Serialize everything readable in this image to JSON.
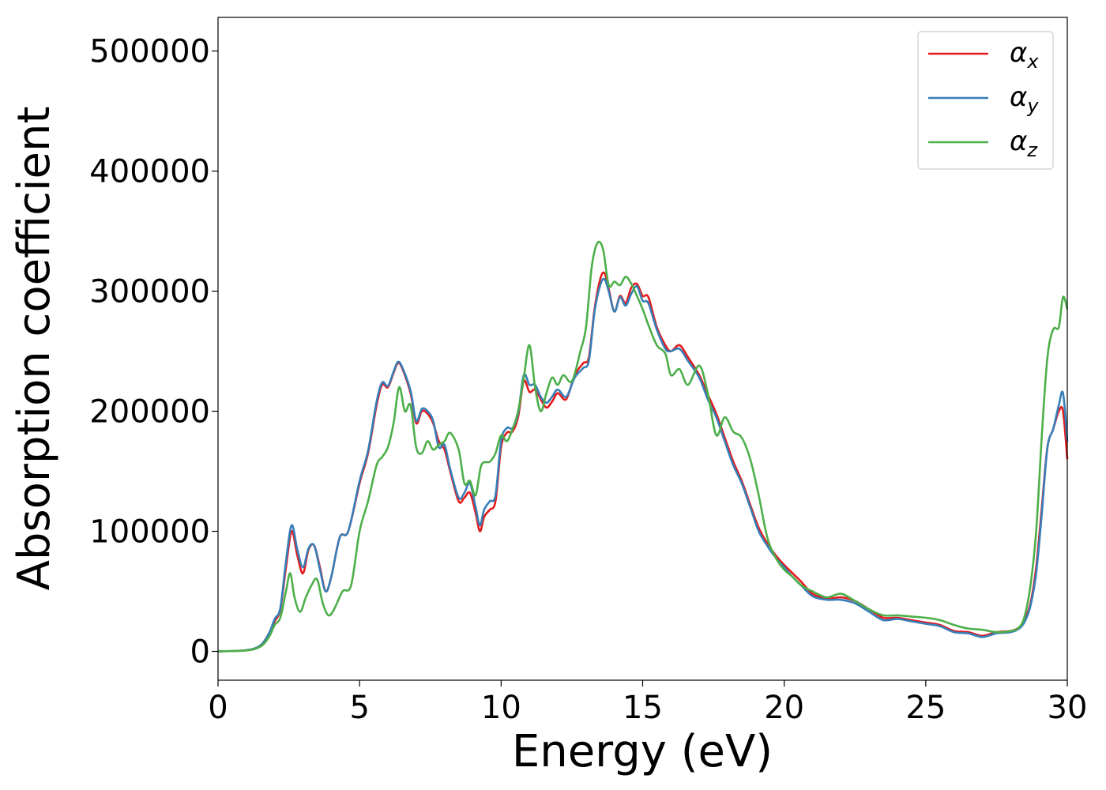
{
  "chart_data": {
    "type": "line",
    "title": "",
    "xlabel": "Energy (eV)",
    "ylabel": "Absorption coefficient",
    "xlim": [
      0,
      30
    ],
    "ylim": [
      -24000,
      528000
    ],
    "xticks": [
      0,
      5,
      10,
      15,
      20,
      25,
      30
    ],
    "yticks": [
      0,
      100000,
      200000,
      300000,
      400000,
      500000
    ],
    "xtick_labels": [
      "0",
      "5",
      "10",
      "15",
      "20",
      "25",
      "30"
    ],
    "ytick_labels": [
      "0",
      "100000",
      "200000",
      "300000",
      "400000",
      "500000"
    ],
    "grid": false,
    "legend_position": "top-right",
    "series": [
      {
        "name": "α",
        "subscript": "x",
        "color": "#e41a1c",
        "x": [
          0,
          1,
          1.5,
          1.8,
          2.0,
          2.2,
          2.4,
          2.6,
          2.8,
          3.0,
          3.2,
          3.4,
          3.6,
          3.8,
          4.0,
          4.3,
          4.6,
          5.0,
          5.3,
          5.6,
          5.8,
          6.0,
          6.2,
          6.35,
          6.5,
          6.8,
          7.0,
          7.2,
          7.4,
          7.6,
          7.8,
          8.0,
          8.2,
          8.5,
          8.7,
          8.9,
          9.1,
          9.25,
          9.4,
          9.6,
          9.8,
          10.0,
          10.2,
          10.4,
          10.6,
          10.8,
          11.0,
          11.2,
          11.4,
          11.6,
          11.8,
          12.0,
          12.3,
          12.6,
          12.9,
          13.1,
          13.3,
          13.5,
          13.65,
          13.8,
          14.0,
          14.2,
          14.4,
          14.6,
          14.8,
          15.0,
          15.2,
          15.5,
          15.8,
          16.0,
          16.3,
          16.6,
          17.0,
          17.3,
          17.6,
          17.9,
          18.2,
          18.5,
          18.8,
          19.1,
          19.4,
          19.7,
          20.0,
          20.3,
          20.6,
          21.0,
          21.5,
          22.0,
          22.5,
          23.0,
          23.5,
          24.0,
          24.5,
          25.0,
          25.5,
          26.0,
          26.5,
          27.0,
          27.5,
          28.0,
          28.3,
          28.5,
          28.7,
          28.9,
          29.1,
          29.3,
          29.5,
          29.7,
          29.85,
          30.0
        ],
        "y": [
          0,
          1000,
          5000,
          15000,
          25000,
          35000,
          70000,
          100000,
          80000,
          65000,
          85000,
          88000,
          70000,
          50000,
          62000,
          95000,
          100000,
          140000,
          165000,
          205000,
          222000,
          220000,
          232000,
          240000,
          236000,
          215000,
          190000,
          200000,
          198000,
          190000,
          175000,
          168000,
          150000,
          125000,
          128000,
          132000,
          115000,
          100000,
          112000,
          118000,
          125000,
          170000,
          182000,
          183000,
          195000,
          225000,
          216000,
          218000,
          210000,
          203000,
          208000,
          215000,
          210000,
          230000,
          240000,
          245000,
          285000,
          310000,
          315000,
          302000,
          283000,
          296000,
          290000,
          303000,
          306000,
          296000,
          295000,
          270000,
          255000,
          250000,
          255000,
          245000,
          230000,
          214000,
          198000,
          178000,
          158000,
          142000,
          122000,
          103000,
          90000,
          80000,
          72000,
          65000,
          58000,
          48000,
          44000,
          45000,
          42000,
          35000,
          28000,
          28000,
          26000,
          24000,
          22000,
          17000,
          16000,
          13000,
          16000,
          17000,
          20000,
          27000,
          40000,
          70000,
          120000,
          170000,
          185000,
          200000,
          200000,
          160000
        ]
      },
      {
        "name": "α",
        "subscript": "y",
        "color": "#377eb8",
        "x": [
          0,
          1,
          1.5,
          1.8,
          2.0,
          2.2,
          2.4,
          2.6,
          2.8,
          3.0,
          3.2,
          3.4,
          3.6,
          3.8,
          4.0,
          4.3,
          4.6,
          5.0,
          5.3,
          5.6,
          5.8,
          6.0,
          6.2,
          6.35,
          6.5,
          6.8,
          7.0,
          7.2,
          7.4,
          7.6,
          7.8,
          8.0,
          8.2,
          8.5,
          8.7,
          8.9,
          9.1,
          9.25,
          9.4,
          9.6,
          9.8,
          10.0,
          10.2,
          10.4,
          10.6,
          10.8,
          11.0,
          11.2,
          11.4,
          11.6,
          11.8,
          12.0,
          12.3,
          12.6,
          12.9,
          13.1,
          13.3,
          13.5,
          13.65,
          13.8,
          14.0,
          14.2,
          14.4,
          14.6,
          14.8,
          15.0,
          15.2,
          15.5,
          15.8,
          16.0,
          16.3,
          16.6,
          17.0,
          17.3,
          17.6,
          17.9,
          18.2,
          18.5,
          18.8,
          19.1,
          19.4,
          19.7,
          20.0,
          20.3,
          20.6,
          21.0,
          21.5,
          22.0,
          22.5,
          23.0,
          23.5,
          24.0,
          24.5,
          25.0,
          25.5,
          26.0,
          26.5,
          27.0,
          27.5,
          28.0,
          28.3,
          28.5,
          28.7,
          28.9,
          29.1,
          29.3,
          29.5,
          29.7,
          29.85,
          30.0
        ],
        "y": [
          0,
          1000,
          5000,
          15000,
          27000,
          36000,
          75000,
          105000,
          85000,
          70000,
          86000,
          88000,
          68000,
          50000,
          62000,
          95000,
          100000,
          142000,
          167000,
          208000,
          224000,
          221000,
          233000,
          241000,
          237000,
          217000,
          192000,
          202000,
          200000,
          192000,
          170000,
          172000,
          152000,
          128000,
          132000,
          140000,
          120000,
          105000,
          118000,
          125000,
          130000,
          175000,
          186000,
          186000,
          198000,
          230000,
          222000,
          222000,
          212000,
          207000,
          212000,
          218000,
          212000,
          228000,
          236000,
          242000,
          283000,
          305000,
          310000,
          300000,
          283000,
          295000,
          288000,
          298000,
          304000,
          292000,
          290000,
          268000,
          252000,
          250000,
          252000,
          242000,
          228000,
          210000,
          195000,
          175000,
          155000,
          140000,
          120000,
          100000,
          88000,
          78000,
          70000,
          62000,
          55000,
          46000,
          43000,
          43000,
          40000,
          33000,
          26000,
          27000,
          25000,
          23000,
          21000,
          16000,
          15000,
          12000,
          15000,
          16000,
          19000,
          25000,
          38000,
          65000,
          115000,
          170000,
          185000,
          205000,
          215000,
          175000
        ]
      },
      {
        "name": "α",
        "subscript": "z",
        "color": "#4daf4a",
        "x": [
          0,
          1,
          1.5,
          1.8,
          2.0,
          2.2,
          2.4,
          2.55,
          2.7,
          2.9,
          3.1,
          3.3,
          3.5,
          3.7,
          3.9,
          4.1,
          4.4,
          4.7,
          5.0,
          5.3,
          5.6,
          5.8,
          6.0,
          6.2,
          6.4,
          6.6,
          6.8,
          7.0,
          7.2,
          7.4,
          7.6,
          7.8,
          8.0,
          8.2,
          8.5,
          8.7,
          8.9,
          9.1,
          9.3,
          9.6,
          9.8,
          10.0,
          10.2,
          10.4,
          10.6,
          10.8,
          11.0,
          11.2,
          11.4,
          11.6,
          11.8,
          12.0,
          12.2,
          12.5,
          12.8,
          13.0,
          13.2,
          13.4,
          13.6,
          13.8,
          14.0,
          14.2,
          14.4,
          14.6,
          14.8,
          15.0,
          15.2,
          15.5,
          15.8,
          16.0,
          16.3,
          16.6,
          17.0,
          17.3,
          17.6,
          17.9,
          18.2,
          18.5,
          18.8,
          19.1,
          19.4,
          19.7,
          20.0,
          20.3,
          20.6,
          21.0,
          21.5,
          22.0,
          22.5,
          23.0,
          23.5,
          24.0,
          24.5,
          25.0,
          25.5,
          26.0,
          26.5,
          27.0,
          27.5,
          28.0,
          28.3,
          28.5,
          28.7,
          28.9,
          29.1,
          29.3,
          29.5,
          29.7,
          29.85,
          30.0
        ],
        "y": [
          0,
          800,
          4000,
          12000,
          22000,
          28000,
          50000,
          65000,
          45000,
          33000,
          45000,
          55000,
          60000,
          40000,
          30000,
          35000,
          50000,
          55000,
          100000,
          125000,
          155000,
          162000,
          170000,
          190000,
          220000,
          200000,
          205000,
          170000,
          165000,
          175000,
          168000,
          172000,
          175000,
          182000,
          168000,
          140000,
          142000,
          130000,
          155000,
          158000,
          165000,
          180000,
          175000,
          185000,
          200000,
          228000,
          255000,
          220000,
          200000,
          215000,
          228000,
          222000,
          230000,
          225000,
          250000,
          270000,
          320000,
          340000,
          335000,
          305000,
          308000,
          305000,
          312000,
          306000,
          296000,
          285000,
          272000,
          255000,
          248000,
          230000,
          235000,
          222000,
          238000,
          215000,
          180000,
          195000,
          183000,
          178000,
          160000,
          130000,
          95000,
          78000,
          68000,
          62000,
          55000,
          50000,
          45000,
          48000,
          42000,
          35000,
          30000,
          30000,
          29000,
          28000,
          26000,
          22000,
          19000,
          18000,
          16000,
          17000,
          20000,
          30000,
          55000,
          100000,
          180000,
          245000,
          268000,
          270000,
          295000,
          285000
        ]
      }
    ]
  }
}
